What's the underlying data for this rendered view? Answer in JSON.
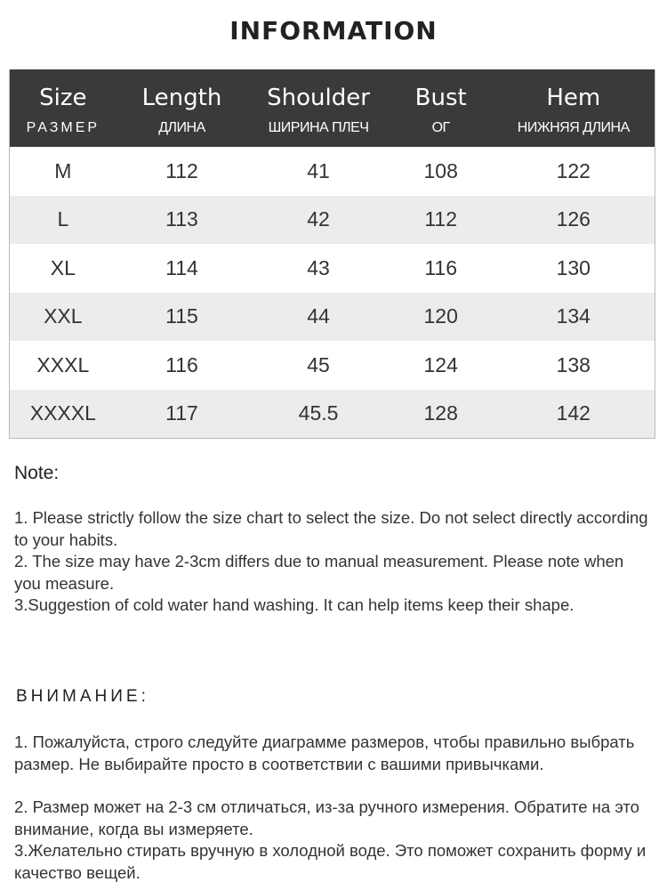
{
  "title": "INFORMATION",
  "table": {
    "headers": [
      {
        "en": "Size",
        "ru": "РАЗМЕР"
      },
      {
        "en": "Length",
        "ru": "ДЛИНА"
      },
      {
        "en": "Shoulder",
        "ru": "ШИРИНА ПЛЕЧ"
      },
      {
        "en": "Bust",
        "ru": "ОГ"
      },
      {
        "en": "Hem",
        "ru": "НИЖНЯЯ ДЛИНА"
      }
    ],
    "rows": [
      [
        "M",
        "112",
        "41",
        "108",
        "122"
      ],
      [
        "L",
        "113",
        "42",
        "112",
        "126"
      ],
      [
        "XL",
        "114",
        "43",
        "116",
        "130"
      ],
      [
        "XXL",
        "115",
        "44",
        "120",
        "134"
      ],
      [
        "XXXL",
        "116",
        "45",
        "124",
        "138"
      ],
      [
        "XXXXL",
        "117",
        "45.5",
        "128",
        "142"
      ]
    ]
  },
  "note": {
    "title": "Note:",
    "items": [
      "1. Please strictly follow the size chart  to select the size. Do not select directly according to your habits.",
      "2. The size may have 2-3cm differs due to manual measurement. Please note when you measure.",
      "3.Suggestion of cold water hand washing. It can help items keep their shape."
    ]
  },
  "attention": {
    "title": "ВНИМАНИЕ:",
    "items": [
      "1. Пожалуйста, строго следуйте диаграмме размеров, чтобы правильно выбрать размер. Не выбирайте просто в соответствии с вашими привычками.",
      "2. Размер может на 2-3 см отличаться, из-за ручного измерения. Обратите на это внимание, когда вы измеряете.",
      "3.Желательно стирать вручную в холодной воде. Это поможет сохранить форму и качество вещей."
    ]
  },
  "colors": {
    "header_bg": "#3a3a3a",
    "alt_row": "#ececec"
  }
}
